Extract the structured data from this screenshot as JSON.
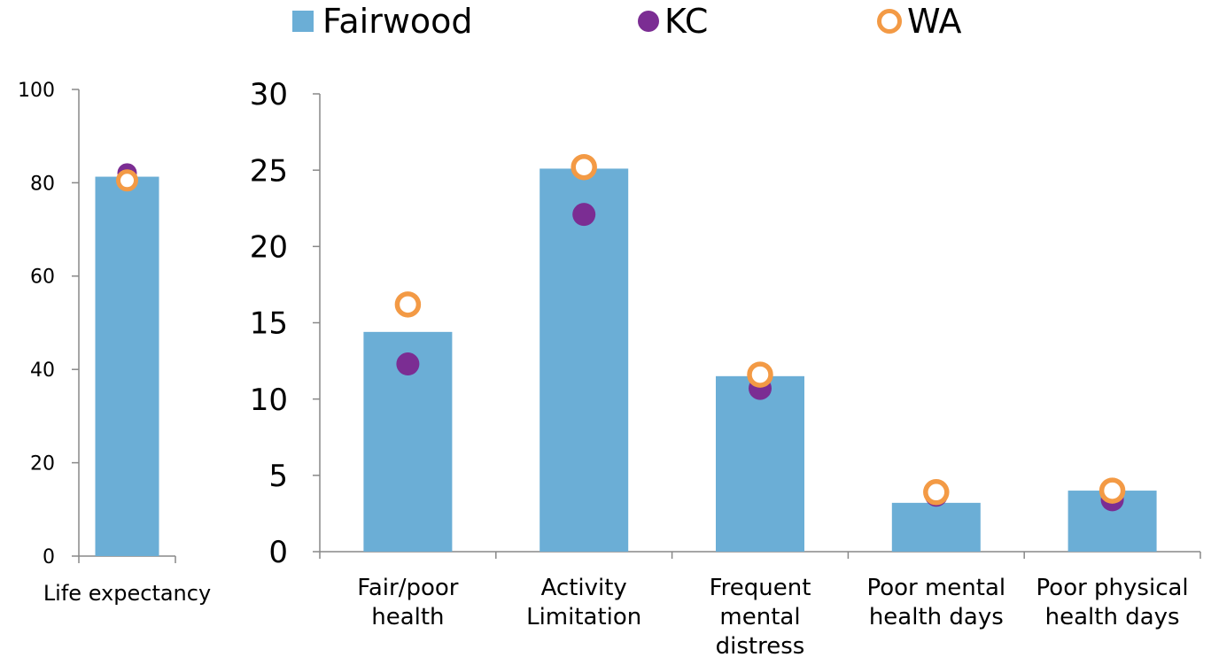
{
  "legend": {
    "fairwood": "Fairwood",
    "kc": "KC",
    "wa": "WA"
  },
  "colors": {
    "fairwood": "#6BAED6",
    "kc": "#7B2D93",
    "wa": "#F39A45"
  },
  "chart_data": [
    {
      "type": "bar",
      "categories": [
        "Life expectancy"
      ],
      "series": [
        {
          "name": "Fairwood",
          "kind": "bar",
          "values": [
            81.3
          ]
        },
        {
          "name": "KC",
          "kind": "marker",
          "values": [
            82.1
          ]
        },
        {
          "name": "WA",
          "kind": "marker",
          "values": [
            80.5
          ]
        }
      ],
      "ylim": [
        0,
        100
      ],
      "yticks": [
        "0",
        "20",
        "40",
        "60",
        "80",
        "100"
      ]
    },
    {
      "type": "bar",
      "categories": [
        "Fair/poor health",
        "Activity Limitation",
        "Frequent mental distress",
        "Poor mental health days",
        "Poor physical health days"
      ],
      "category_lines": [
        [
          "Fair/poor",
          "health"
        ],
        [
          "Activity",
          "Limitation"
        ],
        [
          "Frequent",
          "mental",
          "distress"
        ],
        [
          "Poor mental",
          "health days"
        ],
        [
          "Poor physical",
          "health days"
        ]
      ],
      "series": [
        {
          "name": "Fairwood",
          "kind": "bar",
          "values": [
            14.4,
            25.1,
            11.5,
            3.2,
            4.0
          ]
        },
        {
          "name": "KC",
          "kind": "marker",
          "values": [
            12.3,
            22.1,
            10.7,
            3.7,
            3.4
          ]
        },
        {
          "name": "WA",
          "kind": "marker",
          "values": [
            16.2,
            25.2,
            11.6,
            3.9,
            4.0
          ]
        }
      ],
      "ylim": [
        0,
        30
      ],
      "yticks": [
        "0",
        "5",
        "10",
        "15",
        "20",
        "25",
        "30"
      ]
    }
  ]
}
